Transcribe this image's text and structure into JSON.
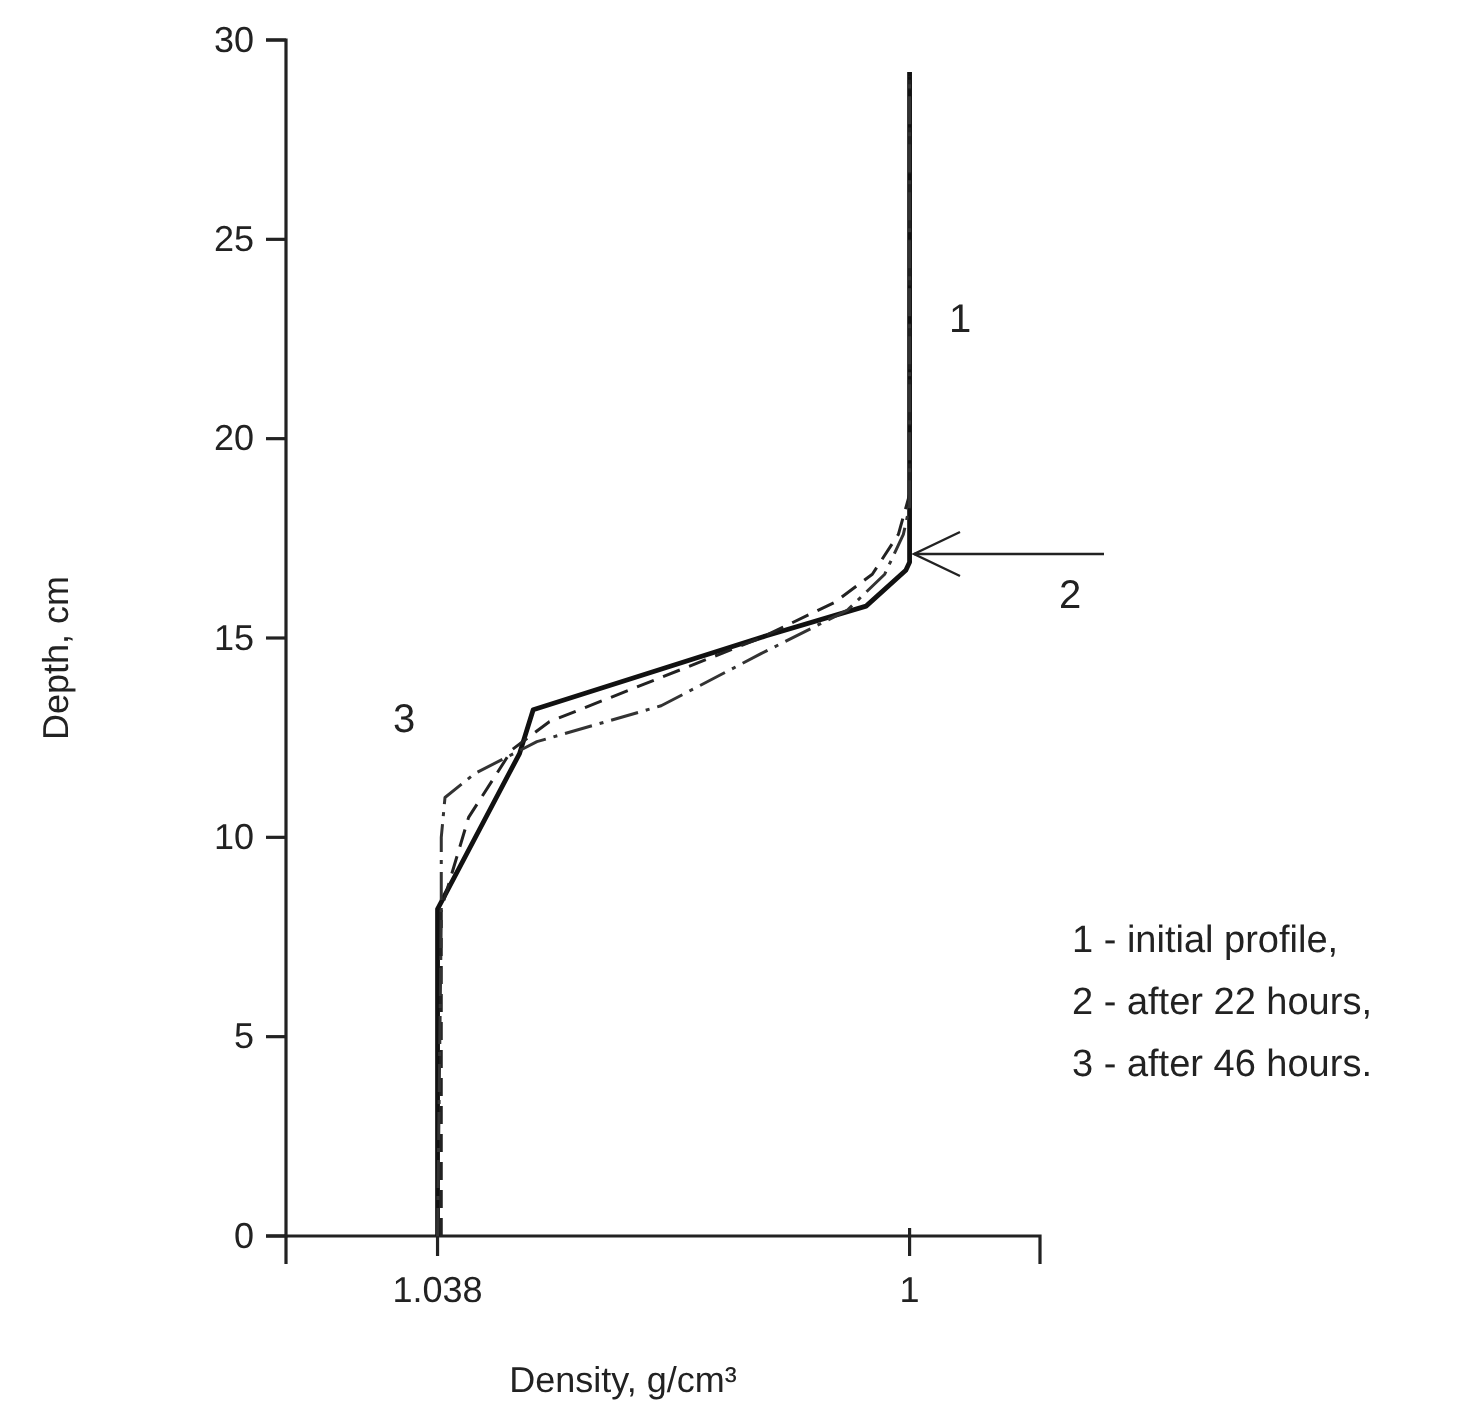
{
  "chart_data": {
    "type": "line",
    "xlabel": "Density, g/cm³",
    "ylabel": "Depth, cm",
    "xlim": [
      1.0502,
      0.9895
    ],
    "xticks": [
      1.038,
      1
    ],
    "ylim": [
      0,
      30
    ],
    "yticks": [
      0,
      5,
      10,
      15,
      20,
      25,
      30
    ],
    "grid": false,
    "marker": "none",
    "series": [
      {
        "name": "1",
        "color": "#111111",
        "line_style": "solid",
        "x": [
          1.038,
          1.038,
          1.0314,
          1.0303,
          1.0116,
          1.0035,
          1.0003,
          1.0,
          1.0
        ],
        "values": [
          0,
          8.2,
          12.1,
          13.2,
          15.05,
          15.8,
          16.7,
          16.9,
          29.2
        ]
      },
      {
        "name": "2",
        "color": "#222222",
        "line_style": "dashed",
        "x": [
          1.0377,
          1.0377,
          1.0355,
          1.032,
          1.029,
          1.012,
          1.006,
          1.003,
          1.0009,
          1.0,
          1.0
        ],
        "values": [
          0,
          8.2,
          10.5,
          12.2,
          12.9,
          15.0,
          15.9,
          16.6,
          17.6,
          18.6,
          29
        ]
      },
      {
        "name": "3",
        "color": "#333333",
        "line_style": "dotted",
        "x": [
          1.038,
          1.0377,
          1.0377,
          1.0374,
          1.035,
          1.03,
          1.02,
          1.012,
          1.005,
          1.002,
          1.0005,
          1.0,
          1.0
        ],
        "values": [
          0,
          8,
          10,
          11,
          11.6,
          12.4,
          13.3,
          14.6,
          15.7,
          16.6,
          17.6,
          18.3,
          29.1
        ]
      }
    ],
    "annotations": [
      "1 - initial profile,",
      "2 - after 22 hours,",
      "3 - after 46 hours."
    ]
  }
}
